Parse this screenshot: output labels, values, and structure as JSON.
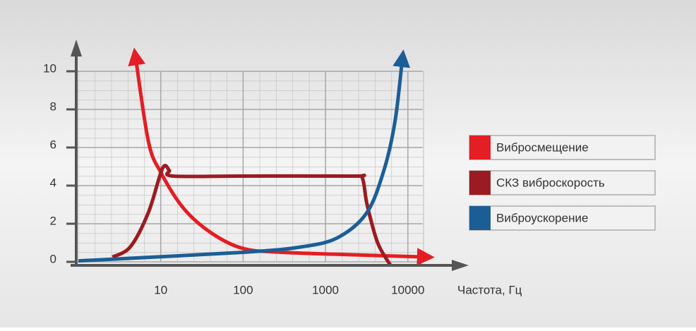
{
  "chart_data": {
    "type": "line",
    "log_x": true,
    "grid": true,
    "x_label": "Частота, Гц",
    "xlim": [
      1,
      15000
    ],
    "xticks": [
      10,
      100,
      1000,
      10000
    ],
    "ylim": [
      0,
      10
    ],
    "yticks": [
      0,
      2,
      4,
      6,
      8,
      10
    ],
    "series": [
      {
        "name": "Вибросмещение",
        "color": "#e31e24",
        "arrows": [
          "start",
          "end"
        ],
        "x": [
          5,
          7.1,
          10,
          19,
          41.6,
          100,
          300,
          2150,
          15000
        ],
        "values": [
          10.6,
          6.3,
          4.7,
          2.8,
          1.5,
          0.7,
          0.5,
          0.37,
          0.26
        ]
      },
      {
        "name": "СКЗ виброскорость",
        "color": "#9b1b22",
        "arrows": [],
        "x": [
          2.6,
          4.3,
          7.1,
          10.5,
          12.7,
          14,
          92,
          2150,
          2800,
          3200,
          4300,
          6200
        ],
        "values": [
          0.25,
          0.8,
          2.6,
          4.9,
          4.8,
          4.5,
          4.5,
          4.5,
          4.4,
          3.0,
          1.0,
          -0.2
        ]
      },
      {
        "name": "Виброускорение",
        "color": "#1b5e96",
        "arrows": [
          "end"
        ],
        "x": [
          1,
          100,
          540,
          1450,
          3200,
          5200,
          7000,
          8500
        ],
        "values": [
          0.05,
          0.5,
          0.8,
          1.3,
          2.6,
          4.9,
          7.4,
          10.5
        ]
      }
    ]
  }
}
